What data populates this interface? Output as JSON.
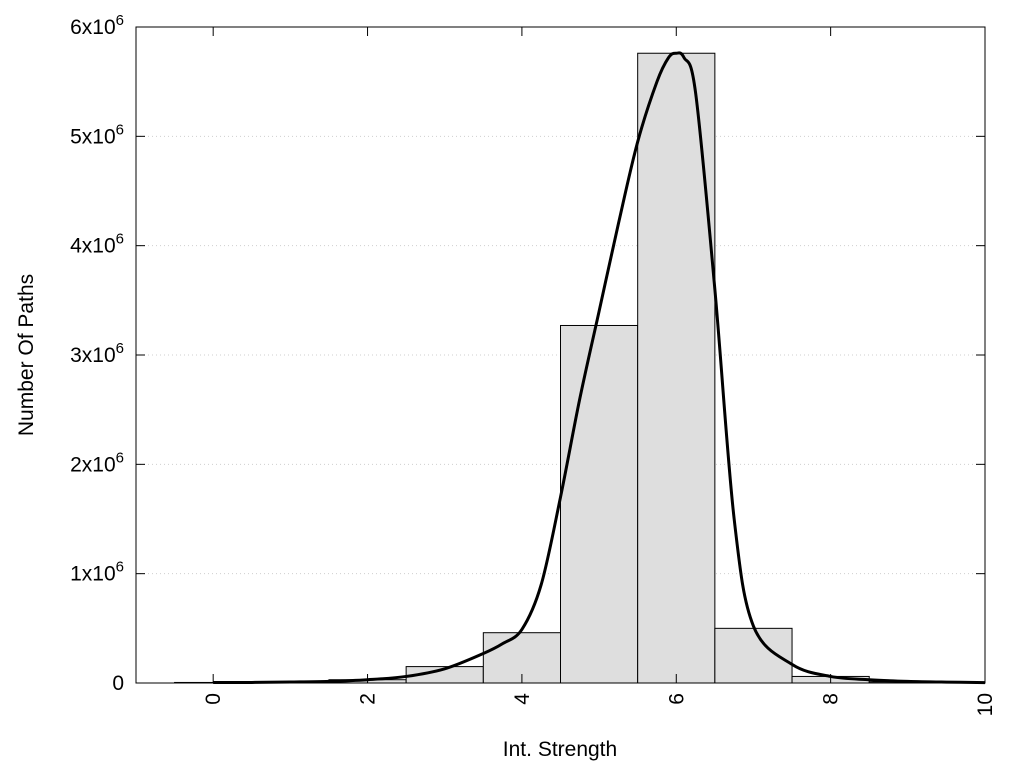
{
  "chart_data": {
    "type": "bar",
    "xlabel": "Int. Strength",
    "ylabel": "Number Of Paths",
    "xlim": [
      -1,
      10
    ],
    "ylim": [
      0,
      6000000
    ],
    "grid": true,
    "x_ticks": [
      "0",
      "2",
      "4",
      "6",
      "8",
      "10"
    ],
    "y_ticks": [
      {
        "value": 0,
        "base": "0",
        "exp": ""
      },
      {
        "value": 1000000,
        "base": "1x10",
        "exp": "6"
      },
      {
        "value": 2000000,
        "base": "2x10",
        "exp": "6"
      },
      {
        "value": 3000000,
        "base": "3x10",
        "exp": "6"
      },
      {
        "value": 4000000,
        "base": "4x10",
        "exp": "6"
      },
      {
        "value": 5000000,
        "base": "5x10",
        "exp": "6"
      },
      {
        "value": 6000000,
        "base": "6x10",
        "exp": "6"
      }
    ],
    "bars": [
      {
        "x": 0,
        "value": 5000
      },
      {
        "x": 1,
        "value": 10000
      },
      {
        "x": 2,
        "value": 30000
      },
      {
        "x": 3,
        "value": 150000
      },
      {
        "x": 4,
        "value": 460000
      },
      {
        "x": 5,
        "value": 3270000
      },
      {
        "x": 6,
        "value": 5760000
      },
      {
        "x": 7,
        "value": 500000
      },
      {
        "x": 8,
        "value": 60000
      },
      {
        "x": 9,
        "value": 10000
      }
    ],
    "bar_width": 1,
    "fit_curve": {
      "x": [
        0,
        0.5,
        1,
        1.5,
        2,
        2.5,
        3,
        3.5,
        3.75,
        4,
        4.25,
        4.5,
        4.75,
        5,
        5.25,
        5.5,
        5.75,
        5.9,
        6,
        6.1,
        6.25,
        6.5,
        6.75,
        7,
        7.5,
        8,
        8.5,
        9,
        9.5,
        10
      ],
      "y": [
        5000,
        5000,
        9000,
        15000,
        30000,
        60000,
        130000,
        270000,
        360000,
        490000,
        900000,
        1700000,
        2600000,
        3400000,
        4200000,
        4950000,
        5500000,
        5720000,
        5760000,
        5720000,
        5400000,
        3600000,
        1500000,
        520000,
        170000,
        60000,
        30000,
        15000,
        8000,
        4000
      ]
    }
  }
}
